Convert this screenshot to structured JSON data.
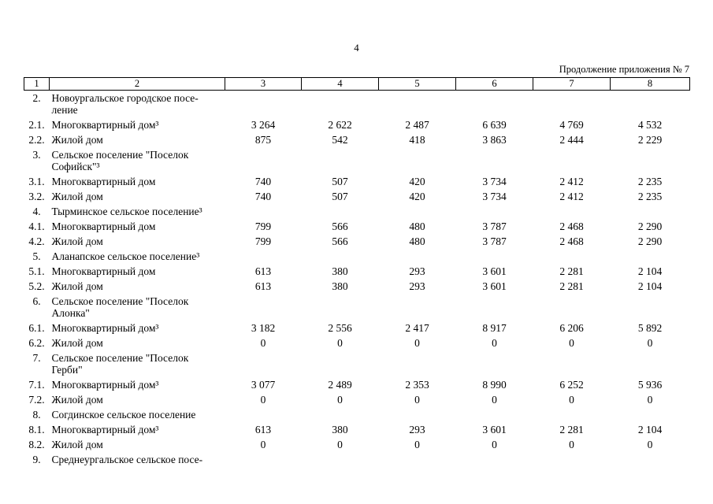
{
  "page": {
    "number": "4",
    "continuation": "Продолжение приложения № 7"
  },
  "table": {
    "columns": [
      "1",
      "2",
      "3",
      "4",
      "5",
      "6",
      "7",
      "8"
    ],
    "rows": [
      {
        "num": "2.",
        "name": "Новоургальское городское посе-\nление",
        "values": null
      },
      {
        "num": "2.1.",
        "name": "Многоквартирный дом³",
        "values": [
          "3 264",
          "2 622",
          "2 487",
          "6 639",
          "4 769",
          "4 532"
        ]
      },
      {
        "num": "2.2.",
        "name": "Жилой дом",
        "values": [
          "875",
          "542",
          "418",
          "3 863",
          "2 444",
          "2 229"
        ]
      },
      {
        "num": "3.",
        "name": "Сельское поселение \"Поселок\nСофийск\"³",
        "values": null
      },
      {
        "num": "3.1.",
        "name": "Многоквартирный дом",
        "values": [
          "740",
          "507",
          "420",
          "3 734",
          "2 412",
          "2 235"
        ]
      },
      {
        "num": "3.2.",
        "name": "Жилой дом",
        "values": [
          "740",
          "507",
          "420",
          "3 734",
          "2 412",
          "2 235"
        ]
      },
      {
        "num": "4.",
        "name": "Тырминское сельское поселение³",
        "values": null
      },
      {
        "num": "4.1.",
        "name": "Многоквартирный дом",
        "values": [
          "799",
          "566",
          "480",
          "3 787",
          "2 468",
          "2 290"
        ]
      },
      {
        "num": "4.2.",
        "name": "Жилой дом",
        "values": [
          "799",
          "566",
          "480",
          "3 787",
          "2 468",
          "2 290"
        ]
      },
      {
        "num": "5.",
        "name": "Аланапское сельское поселение³",
        "values": null
      },
      {
        "num": "5.1.",
        "name": "Многоквартирный дом",
        "values": [
          "613",
          "380",
          "293",
          "3 601",
          "2 281",
          "2 104"
        ]
      },
      {
        "num": "5.2.",
        "name": "Жилой дом",
        "values": [
          "613",
          "380",
          "293",
          "3 601",
          "2 281",
          "2 104"
        ]
      },
      {
        "num": "6.",
        "name": "Сельское поселение \"Поселок\nАлонка\"",
        "values": null
      },
      {
        "num": "6.1.",
        "name": "Многоквартирный дом³",
        "values": [
          "3 182",
          "2 556",
          "2 417",
          "8 917",
          "6 206",
          "5 892"
        ]
      },
      {
        "num": "6.2.",
        "name": "Жилой дом",
        "values": [
          "0",
          "0",
          "0",
          "0",
          "0",
          "0"
        ]
      },
      {
        "num": "7.",
        "name": "Сельское поселение \"Поселок\nГерби\"",
        "values": null
      },
      {
        "num": "7.1.",
        "name": "Многоквартирный дом³",
        "values": [
          "3 077",
          "2 489",
          "2 353",
          "8 990",
          "6 252",
          "5 936"
        ]
      },
      {
        "num": "7.2.",
        "name": "Жилой дом",
        "values": [
          "0",
          "0",
          "0",
          "0",
          "0",
          "0"
        ]
      },
      {
        "num": "8.",
        "name": "Согдинское сельское поселение",
        "values": null
      },
      {
        "num": "8.1.",
        "name": "Многоквартирный дом³",
        "values": [
          "613",
          "380",
          "293",
          "3 601",
          "2 281",
          "2 104"
        ]
      },
      {
        "num": "8.2.",
        "name": "Жилой дом",
        "values": [
          "0",
          "0",
          "0",
          "0",
          "0",
          "0"
        ]
      },
      {
        "num": "9.",
        "name": "Среднеургальское сельское посе-",
        "values": null
      }
    ]
  }
}
